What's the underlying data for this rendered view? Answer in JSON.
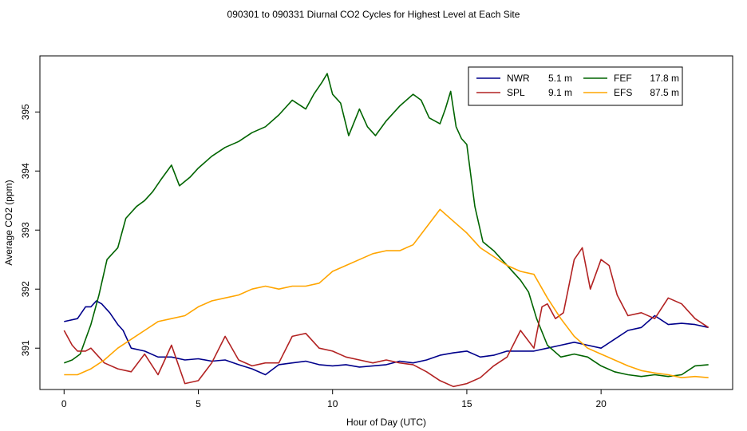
{
  "chart_data": {
    "type": "line",
    "title": "090301  to  090331 Diurnal CO2 Cycles for Highest Level at Each Site",
    "xlabel": "Hour of Day (UTC)",
    "ylabel": "Average CO2 (ppm)",
    "xlim": [
      -0.9,
      24.9
    ],
    "ylim": [
      390.3,
      395.95
    ],
    "xticks": [
      0,
      5,
      10,
      15,
      20
    ],
    "yticks": [
      391,
      392,
      393,
      394,
      395
    ],
    "legend_position": "top-right",
    "series": [
      {
        "name": "NWR  5.1 m",
        "site": "NWR",
        "height": "5.1 m",
        "color": "#00008b",
        "x": [
          0,
          0.5,
          0.8,
          1.0,
          1.2,
          1.4,
          1.7,
          2.0,
          2.2,
          2.5,
          3.0,
          3.5,
          4.0,
          4.5,
          5.0,
          5.5,
          6.0,
          6.5,
          7.0,
          7.5,
          8.0,
          8.5,
          9.0,
          9.5,
          10.0,
          10.5,
          11.0,
          11.5,
          12.0,
          12.5,
          13.0,
          13.5,
          14.0,
          14.5,
          15.0,
          15.5,
          16.0,
          16.5,
          17.0,
          17.5,
          18.0,
          18.5,
          19.0,
          19.5,
          20.0,
          20.5,
          21.0,
          21.5,
          22.0,
          22.5,
          23.0,
          23.5,
          24.0
        ],
        "values": [
          391.45,
          391.5,
          391.7,
          391.7,
          391.8,
          391.75,
          391.6,
          391.4,
          391.3,
          391.0,
          390.95,
          390.85,
          390.85,
          390.8,
          390.82,
          390.78,
          390.8,
          390.72,
          390.65,
          390.55,
          390.72,
          390.75,
          390.78,
          390.72,
          390.7,
          390.72,
          390.68,
          390.7,
          390.72,
          390.78,
          390.75,
          390.8,
          390.88,
          390.92,
          390.95,
          390.85,
          390.88,
          390.95,
          390.95,
          390.95,
          391.0,
          391.05,
          391.1,
          391.05,
          391.0,
          391.15,
          391.3,
          391.35,
          391.55,
          391.4,
          391.42,
          391.4,
          391.35
        ]
      },
      {
        "name": "FEF  17.8 m",
        "site": "FEF",
        "height": "17.8 m",
        "color": "#006400",
        "x": [
          0,
          0.3,
          0.6,
          1.0,
          1.3,
          1.6,
          2.0,
          2.3,
          2.7,
          3.0,
          3.3,
          3.6,
          4.0,
          4.3,
          4.7,
          5.0,
          5.5,
          6.0,
          6.5,
          7.0,
          7.5,
          8.0,
          8.5,
          9.0,
          9.3,
          9.6,
          9.8,
          10.0,
          10.3,
          10.6,
          11.0,
          11.3,
          11.6,
          12.0,
          12.5,
          13.0,
          13.3,
          13.6,
          14.0,
          14.2,
          14.4,
          14.6,
          14.8,
          15.0,
          15.3,
          15.6,
          16.0,
          16.5,
          17.0,
          17.3,
          17.6,
          18.0,
          18.5,
          19.0,
          19.5,
          20.0,
          20.5,
          21.0,
          21.5,
          22.0,
          22.5,
          23.0,
          23.5,
          24.0
        ],
        "values": [
          390.75,
          390.8,
          390.9,
          391.4,
          391.9,
          392.5,
          392.7,
          393.2,
          393.4,
          393.5,
          393.65,
          393.85,
          394.1,
          393.75,
          393.9,
          394.05,
          394.25,
          394.4,
          394.5,
          394.65,
          394.75,
          394.95,
          395.2,
          395.05,
          395.3,
          395.5,
          395.65,
          395.3,
          395.15,
          394.6,
          395.05,
          394.75,
          394.6,
          394.85,
          395.1,
          395.3,
          395.2,
          394.9,
          394.8,
          395.05,
          395.35,
          394.75,
          394.55,
          394.45,
          393.4,
          392.8,
          392.65,
          392.4,
          392.15,
          391.95,
          391.5,
          391.05,
          390.85,
          390.9,
          390.85,
          390.7,
          390.6,
          390.55,
          390.52,
          390.55,
          390.52,
          390.55,
          390.7,
          390.72
        ]
      },
      {
        "name": "SPL  9.1 m",
        "site": "SPL",
        "height": "9.1 m",
        "color": "#b22222",
        "x": [
          0,
          0.3,
          0.5,
          0.8,
          1.0,
          1.5,
          2.0,
          2.5,
          3.0,
          3.5,
          4.0,
          4.5,
          5.0,
          5.5,
          6.0,
          6.5,
          7.0,
          7.5,
          8.0,
          8.5,
          9.0,
          9.5,
          10.0,
          10.5,
          11.0,
          11.5,
          12.0,
          12.5,
          13.0,
          13.5,
          14.0,
          14.5,
          15.0,
          15.5,
          16.0,
          16.5,
          17.0,
          17.5,
          17.8,
          18.0,
          18.3,
          18.6,
          19.0,
          19.3,
          19.6,
          20.0,
          20.3,
          20.6,
          21.0,
          21.5,
          22.0,
          22.5,
          23.0,
          23.5,
          24.0
        ],
        "values": [
          391.3,
          391.05,
          390.95,
          390.95,
          391.0,
          390.75,
          390.65,
          390.6,
          390.9,
          390.55,
          391.05,
          390.4,
          390.45,
          390.75,
          391.2,
          390.8,
          390.7,
          390.75,
          390.75,
          391.2,
          391.25,
          391.0,
          390.95,
          390.85,
          390.8,
          390.75,
          390.8,
          390.75,
          390.72,
          390.6,
          390.45,
          390.35,
          390.4,
          390.5,
          390.7,
          390.85,
          391.3,
          391.0,
          391.7,
          391.75,
          391.5,
          391.6,
          392.5,
          392.7,
          392.0,
          392.5,
          392.4,
          391.9,
          391.55,
          391.6,
          391.5,
          391.85,
          391.75,
          391.5,
          391.35
        ]
      },
      {
        "name": "EFS  87.5 m",
        "site": "EFS",
        "height": "87.5 m",
        "color": "#ffa500",
        "x": [
          0,
          0.5,
          1.0,
          1.5,
          2.0,
          2.5,
          3.0,
          3.5,
          4.0,
          4.5,
          5.0,
          5.5,
          6.0,
          6.5,
          7.0,
          7.5,
          8.0,
          8.5,
          9.0,
          9.5,
          10.0,
          10.5,
          11.0,
          11.5,
          12.0,
          12.5,
          13.0,
          13.5,
          14.0,
          14.5,
          15.0,
          15.5,
          16.0,
          16.5,
          17.0,
          17.5,
          18.0,
          18.5,
          19.0,
          19.5,
          20.0,
          20.5,
          21.0,
          21.5,
          22.0,
          22.5,
          23.0,
          23.5,
          24.0
        ],
        "values": [
          390.55,
          390.55,
          390.65,
          390.8,
          391.0,
          391.15,
          391.3,
          391.45,
          391.5,
          391.55,
          391.7,
          391.8,
          391.85,
          391.9,
          392.0,
          392.05,
          392.0,
          392.05,
          392.05,
          392.1,
          392.3,
          392.4,
          392.5,
          392.6,
          392.65,
          392.65,
          392.75,
          393.05,
          393.35,
          393.15,
          392.95,
          392.7,
          392.55,
          392.4,
          392.3,
          392.25,
          391.85,
          391.5,
          391.2,
          391.0,
          390.9,
          390.8,
          390.7,
          390.62,
          390.58,
          390.55,
          390.5,
          390.52,
          390.5
        ]
      }
    ]
  }
}
